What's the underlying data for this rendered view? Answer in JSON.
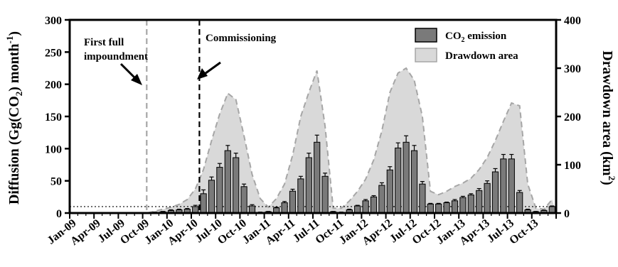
{
  "chart_data": {
    "type": "bar",
    "ylabel_left": "Diffusion (Gg(CO₂) month⁻¹)",
    "ylabel_right": "Drawdown area (km²)",
    "xlabel": "",
    "ylim_left": [
      0,
      300
    ],
    "ylim_right": [
      0,
      400
    ],
    "yticks_left": [
      0,
      50,
      100,
      150,
      200,
      250,
      300
    ],
    "yticks_right": [
      0,
      100,
      200,
      300,
      400
    ],
    "legend_position": "top-right",
    "grid": false,
    "start_month": "Jan-09",
    "x_tick_labels": [
      "Jan-09",
      "Apr-09",
      "Jul-09",
      "Oct-09",
      "Jan-10",
      "Apr-10",
      "Jul-10",
      "Oct-10",
      "Jan-11",
      "Apr-11",
      "Jul-11",
      "Oct-11",
      "Jan-12",
      "Apr-12",
      "Jul-12",
      "Oct-12",
      "Jan-13",
      "Apr-13",
      "Jul-13",
      "Oct-13"
    ],
    "series": [
      {
        "name": "CO₂ emission",
        "kind": "bar",
        "axis": "left",
        "color": "#7a7a7a",
        "values": [
          0,
          0,
          0,
          0,
          0,
          0,
          0,
          0,
          0,
          0,
          1,
          2,
          4,
          5,
          6,
          10,
          30,
          51,
          71,
          97,
          86,
          41,
          11,
          1,
          2,
          8,
          16,
          34,
          53,
          86,
          110,
          57,
          2,
          1,
          5,
          11,
          19,
          25,
          43,
          67,
          101,
          110,
          97,
          45,
          14,
          14,
          16,
          19,
          24,
          28,
          35,
          46,
          64,
          84,
          84,
          32,
          5,
          2,
          4,
          10
        ],
        "errors": [
          0,
          0,
          0,
          0,
          0,
          0,
          0,
          0,
          0,
          0,
          0.5,
          0.5,
          1,
          1,
          1,
          2,
          6,
          5,
          6,
          8,
          7,
          4,
          2,
          0.5,
          0.5,
          1,
          2,
          3,
          4,
          7,
          11,
          5,
          0.5,
          0.5,
          1,
          1,
          2,
          2,
          4,
          5,
          8,
          10,
          8,
          4,
          1,
          1,
          1,
          2,
          2,
          2,
          3,
          4,
          5,
          7,
          7,
          3,
          1,
          0.5,
          0.5,
          1
        ]
      },
      {
        "name": "Drawdown area",
        "kind": "area",
        "axis": "right",
        "color": "#d9d9d9",
        "values": [
          0,
          0,
          0,
          0,
          0,
          0,
          0,
          0,
          0,
          0,
          4,
          8,
          12,
          18,
          28,
          50,
          90,
          150,
          205,
          248,
          235,
          160,
          80,
          30,
          12,
          30,
          60,
          120,
          200,
          250,
          295,
          180,
          10,
          10,
          25,
          45,
          70,
          110,
          170,
          250,
          290,
          300,
          275,
          200,
          45,
          38,
          45,
          55,
          62,
          72,
          90,
          115,
          150,
          190,
          228,
          222,
          60,
          10,
          8,
          28
        ]
      }
    ],
    "vlines": [
      {
        "x_month": 9,
        "style": "dashed",
        "color": "#a6a6a6"
      },
      {
        "x_month": 15.5,
        "style": "dashed",
        "color": "#000000"
      }
    ],
    "hline": {
      "y_left": 10,
      "style": "dotted"
    },
    "annotations": [
      {
        "text": "First full",
        "line": 1
      },
      {
        "text": "impoundment",
        "line": 2
      },
      {
        "text": "Commissioning",
        "line": 1
      }
    ]
  }
}
